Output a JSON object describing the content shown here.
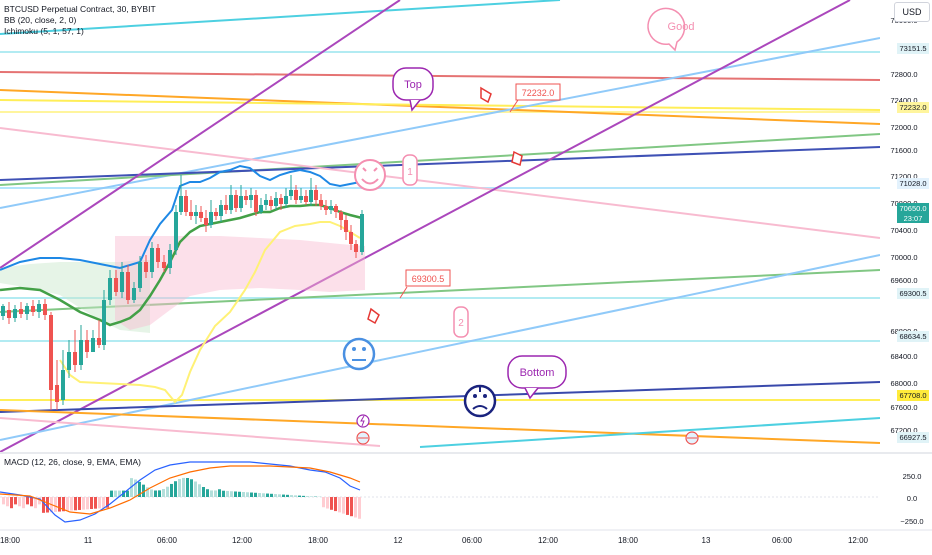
{
  "header": {
    "symbol_line": "BTCUSD Perpetual Contract, 30, BYBIT",
    "bb_line": "BB (20, close, 2, 0)",
    "ichimoku_line": "Ichimoku (5, 1, 57, 1)",
    "currency": "USD"
  },
  "macd": {
    "label": "MACD (12, 26, close, 9, EMA, EMA)"
  },
  "price_axis": {
    "ticks": [
      "73600.0",
      "72800.0",
      "72400.0",
      "72000.0",
      "71600.0",
      "71200.0",
      "70800.0",
      "70400.0",
      "70000.0",
      "69600.0",
      "68800.0",
      "68400.0",
      "68000.0",
      "67600.0",
      "67200.0"
    ],
    "badges": [
      {
        "text": "73151.5",
        "bg": "#e0f3f7",
        "fg": "#131722"
      },
      {
        "text": "72232.0",
        "bg": "#fff59d",
        "fg": "#131722"
      },
      {
        "text": "71028.0",
        "bg": "#e3f2fd",
        "fg": "#131722"
      },
      {
        "text": "70650.0",
        "bg": "#26a69a",
        "fg": "#ffffff"
      },
      {
        "text": "69300.5",
        "bg": "#e0f3f7",
        "fg": "#131722"
      },
      {
        "text": "68634.5",
        "bg": "#e0f3f7",
        "fg": "#131722"
      },
      {
        "text": "67708.0",
        "bg": "#ffeb3b",
        "fg": "#131722"
      },
      {
        "text": "66927.5",
        "bg": "#e0f3f7",
        "fg": "#131722"
      }
    ],
    "countdown": "23:07"
  },
  "macd_axis": {
    "ticks": [
      "250.0",
      "0.0",
      "−250.0"
    ]
  },
  "time_axis": {
    "ticks": [
      "18:00",
      "11",
      "06:00",
      "12:00",
      "18:00",
      "12",
      "06:00",
      "12:00",
      "18:00",
      "13",
      "06:00",
      "12:00"
    ]
  },
  "annotations": {
    "good": "Good",
    "top": "Top",
    "bottom": "Bottom",
    "price_top": "72232.0",
    "price_mid": "69300.5",
    "num_one": "1",
    "num_two": "2"
  },
  "colors": {
    "up": "#26a69a",
    "down": "#ef5350",
    "purple": "#9c27b0",
    "navy": "#1a237e",
    "bb_basis": "#43a047",
    "bb_upper": "#1e88e5",
    "ichimoku_yellow": "#fff176",
    "cloud": "#f8bbd0",
    "cyan": "#4dd0e1",
    "red_line": "#e57373",
    "orange": "#ffa726",
    "yellow": "#ffeb3b",
    "light_blue": "#90caf9",
    "green_line": "#81c784",
    "pink_line": "#f8bbd0",
    "emoji_pink": "#f48fb1",
    "emoji_blue": "#4a90e2"
  }
}
